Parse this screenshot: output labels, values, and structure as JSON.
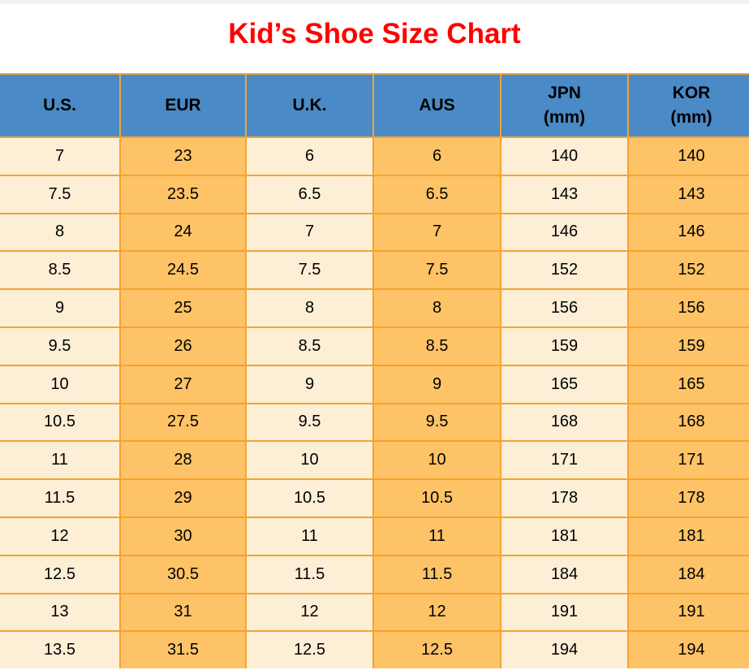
{
  "page": {
    "title": "Kid’s Shoe Size Chart"
  },
  "chart_data": {
    "type": "table",
    "title": "Kid’s Shoe Size Chart",
    "columns": [
      {
        "id": "us",
        "label": "U.S.",
        "unit": ""
      },
      {
        "id": "eur",
        "label": "EUR",
        "unit": ""
      },
      {
        "id": "uk",
        "label": "U.K.",
        "unit": ""
      },
      {
        "id": "aus",
        "label": "AUS",
        "unit": ""
      },
      {
        "id": "jpn",
        "label": "JPN",
        "unit": "(mm)"
      },
      {
        "id": "kor",
        "label": "KOR",
        "unit": "(mm)"
      }
    ],
    "rows": [
      [
        "7",
        "23",
        "6",
        "6",
        "140",
        "140"
      ],
      [
        "7.5",
        "23.5",
        "6.5",
        "6.5",
        "143",
        "143"
      ],
      [
        "8",
        "24",
        "7",
        "7",
        "146",
        "146"
      ],
      [
        "8.5",
        "24.5",
        "7.5",
        "7.5",
        "152",
        "152"
      ],
      [
        "9",
        "25",
        "8",
        "8",
        "156",
        "156"
      ],
      [
        "9.5",
        "26",
        "8.5",
        "8.5",
        "159",
        "159"
      ],
      [
        "10",
        "27",
        "9",
        "9",
        "165",
        "165"
      ],
      [
        "10.5",
        "27.5",
        "9.5",
        "9.5",
        "168",
        "168"
      ],
      [
        "11",
        "28",
        "10",
        "10",
        "171",
        "171"
      ],
      [
        "11.5",
        "29",
        "10.5",
        "10.5",
        "178",
        "178"
      ],
      [
        "12",
        "30",
        "11",
        "11",
        "181",
        "181"
      ],
      [
        "12.5",
        "30.5",
        "11.5",
        "11.5",
        "184",
        "184"
      ],
      [
        "13",
        "31",
        "12",
        "12",
        "191",
        "191"
      ],
      [
        "13.5",
        "31.5",
        "12.5",
        "12.5",
        "194",
        "194"
      ]
    ]
  },
  "colors": {
    "title_red": "#ff0000",
    "header_blue": "#4a8ac6",
    "cell_cream": "#fdeed6",
    "cell_orange": "#ffc367",
    "grid_border_orange": "#f2a431",
    "top_strip_gray": "#f2f2f2"
  }
}
